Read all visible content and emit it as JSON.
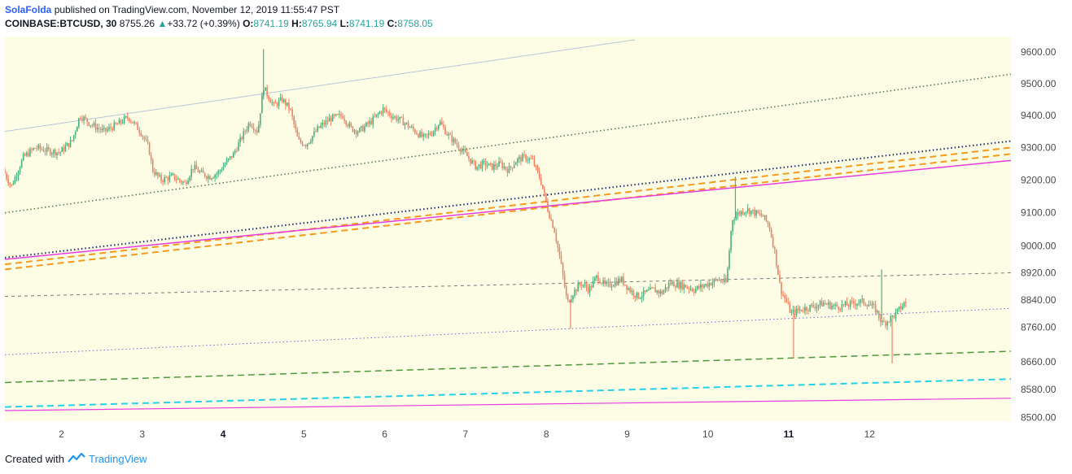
{
  "header": {
    "author": "SolaFolda",
    "published_text": "published on TradingView.com, November 12, 2019 11:55:47 PST",
    "symbol": "COINBASE:BTCUSD, 30",
    "last_price": "8755.26",
    "change_arrow": "▲",
    "change": "+33.72 (+0.39%)",
    "o_label": "O:",
    "o_value": "8741.19",
    "h_label": "H:",
    "h_value": "8765.94",
    "l_label": "L:",
    "l_value": "8741.19",
    "c_label": "C:",
    "c_value": "8758.05"
  },
  "footer": {
    "created_with": "Created with",
    "brand": "TradingView"
  },
  "colors": {
    "background": "#fdfde6",
    "up": "#4caf7d",
    "down": "#ef8262",
    "axis_text": "#4a4a4a"
  },
  "chart_data": {
    "type": "candlestick",
    "symbol": "COINBASE:BTCUSD",
    "interval": "30",
    "x_ticks": [
      {
        "label": "2",
        "bold": false,
        "day": 2
      },
      {
        "label": "3",
        "bold": false,
        "day": 3
      },
      {
        "label": "4",
        "bold": true,
        "day": 4
      },
      {
        "label": "5",
        "bold": false,
        "day": 5
      },
      {
        "label": "6",
        "bold": false,
        "day": 6
      },
      {
        "label": "7",
        "bold": false,
        "day": 7
      },
      {
        "label": "8",
        "bold": false,
        "day": 8
      },
      {
        "label": "9",
        "bold": false,
        "day": 9
      },
      {
        "label": "10",
        "bold": false,
        "day": 10
      },
      {
        "label": "11",
        "bold": true,
        "day": 11
      },
      {
        "label": "12",
        "bold": false,
        "day": 12
      }
    ],
    "y_ticks": [
      "9600.00",
      "9500.00",
      "9400.00",
      "9300.00",
      "9200.00",
      "9100.00",
      "9000.00",
      "8920.00",
      "8840.00",
      "8760.00",
      "8660.00",
      "8580.00",
      "8500.00"
    ],
    "y_scale": "log",
    "ylim": [
      8490,
      9650
    ],
    "xlim": [
      1.3,
      13.75
    ],
    "price_path": [
      [
        1.3,
        9230
      ],
      [
        1.4,
        9180
      ],
      [
        1.55,
        9270
      ],
      [
        1.7,
        9300
      ],
      [
        1.85,
        9290
      ],
      [
        2.0,
        9285
      ],
      [
        2.15,
        9320
      ],
      [
        2.25,
        9400
      ],
      [
        2.4,
        9370
      ],
      [
        2.55,
        9350
      ],
      [
        2.7,
        9370
      ],
      [
        2.85,
        9395
      ],
      [
        3.0,
        9350
      ],
      [
        3.1,
        9300
      ],
      [
        3.15,
        9230
      ],
      [
        3.25,
        9200
      ],
      [
        3.4,
        9210
      ],
      [
        3.55,
        9190
      ],
      [
        3.65,
        9240
      ],
      [
        3.75,
        9220
      ],
      [
        3.85,
        9210
      ],
      [
        3.95,
        9220
      ],
      [
        4.05,
        9250
      ],
      [
        4.15,
        9280
      ],
      [
        4.25,
        9330
      ],
      [
        4.35,
        9380
      ],
      [
        4.45,
        9350
      ],
      [
        4.52,
        9490
      ],
      [
        4.58,
        9460
      ],
      [
        4.65,
        9430
      ],
      [
        4.75,
        9450
      ],
      [
        4.85,
        9420
      ],
      [
        4.95,
        9320
      ],
      [
        5.05,
        9310
      ],
      [
        5.2,
        9360
      ],
      [
        5.35,
        9390
      ],
      [
        5.5,
        9400
      ],
      [
        5.6,
        9360
      ],
      [
        5.7,
        9350
      ],
      [
        5.85,
        9380
      ],
      [
        6.0,
        9420
      ],
      [
        6.1,
        9400
      ],
      [
        6.25,
        9380
      ],
      [
        6.4,
        9350
      ],
      [
        6.5,
        9330
      ],
      [
        6.6,
        9345
      ],
      [
        6.7,
        9380
      ],
      [
        6.8,
        9340
      ],
      [
        6.95,
        9300
      ],
      [
        7.05,
        9270
      ],
      [
        7.15,
        9240
      ],
      [
        7.25,
        9250
      ],
      [
        7.35,
        9240
      ],
      [
        7.45,
        9250
      ],
      [
        7.55,
        9230
      ],
      [
        7.65,
        9260
      ],
      [
        7.75,
        9270
      ],
      [
        7.85,
        9260
      ],
      [
        7.95,
        9200
      ],
      [
        8.05,
        9100
      ],
      [
        8.12,
        9050
      ],
      [
        8.2,
        8950
      ],
      [
        8.28,
        8830
      ],
      [
        8.35,
        8860
      ],
      [
        8.45,
        8890
      ],
      [
        8.55,
        8870
      ],
      [
        8.65,
        8910
      ],
      [
        8.75,
        8880
      ],
      [
        8.85,
        8890
      ],
      [
        8.95,
        8900
      ],
      [
        9.05,
        8870
      ],
      [
        9.15,
        8850
      ],
      [
        9.25,
        8860
      ],
      [
        9.35,
        8870
      ],
      [
        9.45,
        8860
      ],
      [
        9.55,
        8890
      ],
      [
        9.65,
        8885
      ],
      [
        9.75,
        8880
      ],
      [
        9.85,
        8870
      ],
      [
        9.95,
        8880
      ],
      [
        10.05,
        8890
      ],
      [
        10.15,
        8900
      ],
      [
        10.25,
        8890
      ],
      [
        10.32,
        9080
      ],
      [
        10.4,
        9100
      ],
      [
        10.5,
        9110
      ],
      [
        10.6,
        9100
      ],
      [
        10.7,
        9090
      ],
      [
        10.78,
        9060
      ],
      [
        10.85,
        8980
      ],
      [
        10.92,
        8870
      ],
      [
        10.98,
        8840
      ],
      [
        11.05,
        8800
      ],
      [
        11.15,
        8810
      ],
      [
        11.3,
        8820
      ],
      [
        11.45,
        8830
      ],
      [
        11.6,
        8820
      ],
      [
        11.75,
        8825
      ],
      [
        11.9,
        8835
      ],
      [
        12.0,
        8830
      ],
      [
        12.1,
        8810
      ],
      [
        12.18,
        8770
      ],
      [
        12.25,
        8780
      ],
      [
        12.35,
        8800
      ],
      [
        12.45,
        8830
      ]
    ],
    "wick_spikes": [
      {
        "day": 4.5,
        "high": 9610
      },
      {
        "day": 10.34,
        "high": 9210
      },
      {
        "day": 12.15,
        "high": 8930
      },
      {
        "day": 12.28,
        "low": 8655
      },
      {
        "day": 11.06,
        "low": 8670
      },
      {
        "day": 8.3,
        "low": 8755
      }
    ],
    "trendlines": [
      {
        "p1": [
          1.3,
          9350
        ],
        "p2": [
          9.1,
          9640
        ],
        "color": "#b8c7d6",
        "style": "solid",
        "width": 1
      },
      {
        "p1": [
          1.3,
          9100
        ],
        "p2": [
          13.75,
          9530
        ],
        "color": "#4a7a3a",
        "style": "dotted",
        "width": 1.5
      },
      {
        "p1": [
          1.3,
          8965
        ],
        "p2": [
          13.75,
          9320
        ],
        "color": "#1a2b6b",
        "style": "dotted",
        "width": 2
      },
      {
        "p1": [
          1.3,
          8945
        ],
        "p2": [
          13.75,
          9300
        ],
        "color": "#f59a1d",
        "style": "dashed",
        "width": 2
      },
      {
        "p1": [
          1.3,
          8930
        ],
        "p2": [
          13.75,
          9280
        ],
        "color": "#f59a1d",
        "style": "dashed",
        "width": 2
      },
      {
        "p1": [
          1.3,
          8960
        ],
        "p2": [
          13.75,
          9260
        ],
        "color": "#e83ce0",
        "style": "solid",
        "width": 1.5
      },
      {
        "p1": [
          1.3,
          8850
        ],
        "p2": [
          13.75,
          8920
        ],
        "color": "#7a7a7a",
        "style": "dashed-fine",
        "width": 1
      },
      {
        "p1": [
          1.3,
          8680
        ],
        "p2": [
          13.75,
          8815
        ],
        "color": "#6a6acd",
        "style": "dotted",
        "width": 1
      },
      {
        "p1": [
          1.3,
          8600
        ],
        "p2": [
          13.75,
          8690
        ],
        "color": "#4a9a3a",
        "style": "dashed",
        "width": 1.5
      },
      {
        "p1": [
          1.3,
          8530
        ],
        "p2": [
          13.75,
          8610
        ],
        "color": "#23d1e8",
        "style": "dashed",
        "width": 2
      },
      {
        "p1": [
          1.3,
          8520
        ],
        "p2": [
          13.75,
          8555
        ],
        "color": "#e83ce0",
        "style": "solid",
        "width": 1.2
      }
    ]
  }
}
